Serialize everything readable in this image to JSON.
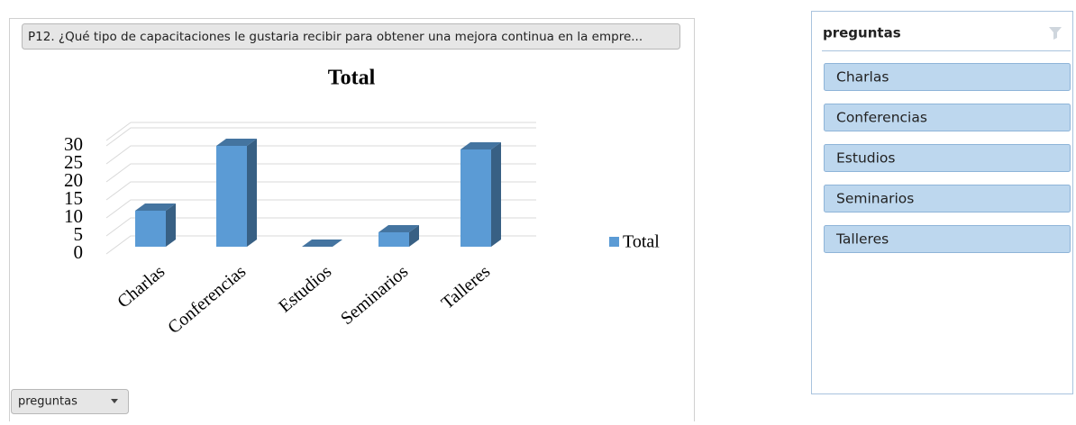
{
  "pivot_header": "P12. ¿Qué tipo de capacitaciones le gustaria recibir para obtener una mejora continua en la empre...",
  "field_button": "preguntas",
  "chart_data": {
    "type": "bar3d",
    "title": "Total",
    "categories": [
      "Charlas",
      "Conferencias",
      "Estudios",
      "Seminarios",
      "Talleres"
    ],
    "series": [
      {
        "name": "Total",
        "color": "#5b9bd5",
        "values": [
          10,
          28,
          0,
          4,
          27
        ]
      }
    ],
    "ylim": [
      0,
      30
    ],
    "yticks": [
      0,
      5,
      10,
      15,
      20,
      25,
      30
    ],
    "grid": true,
    "legend": "right"
  },
  "slicer": {
    "title": "preguntas",
    "items": [
      "Charlas",
      "Conferencias",
      "Estudios",
      "Seminarios",
      "Talleres"
    ]
  }
}
